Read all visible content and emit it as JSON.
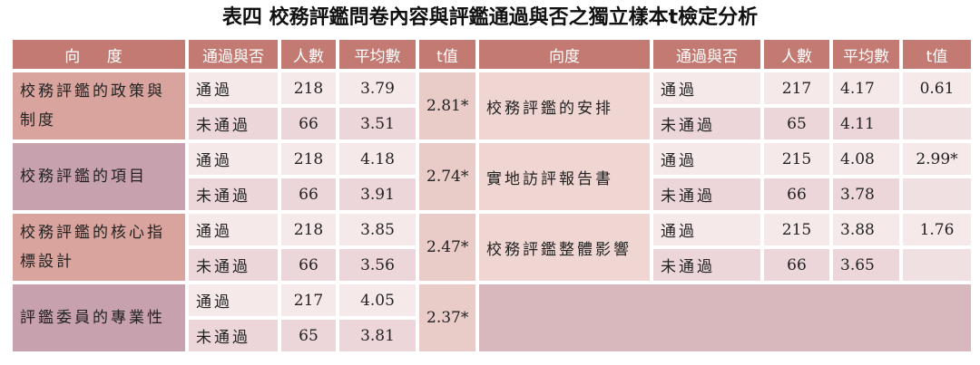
{
  "title": "表四  校務評鑑問卷內容與評鑑通過與否之獨立樣本t檢定分析",
  "table": {
    "headers": [
      "向  度",
      "通過與否",
      "人數",
      "平均數",
      "t值",
      "向度",
      "通過與否",
      "人數",
      "平均數",
      "t值"
    ],
    "left_groups": [
      {
        "dimension": "校務評鑑的政策與制度",
        "rows": [
          [
            "通過",
            218,
            3.79
          ],
          [
            "未通過",
            66,
            3.51
          ]
        ],
        "t": "2.81*"
      },
      {
        "dimension": "校務評鑑的項目",
        "rows": [
          [
            "通過",
            218,
            4.18
          ],
          [
            "未通過",
            66,
            3.91
          ]
        ],
        "t": "2.74*"
      },
      {
        "dimension": "校務評鑑的核心指標設計",
        "rows": [
          [
            "通過",
            218,
            3.85
          ],
          [
            "未通過",
            66,
            3.56
          ]
        ],
        "t": "2.47*"
      },
      {
        "dimension": "評鑑委員的專業性",
        "rows": [
          [
            "通過",
            217,
            4.05
          ],
          [
            "未通過",
            65,
            3.81
          ]
        ],
        "t": "2.37*"
      }
    ],
    "right_groups": [
      {
        "dimension": "校務評鑑的安排",
        "rows": [
          [
            "通過",
            217,
            4.17
          ],
          [
            "未通過",
            65,
            4.11
          ]
        ],
        "t": 0.61
      },
      {
        "dimension": "實地訪評報告書",
        "rows": [
          [
            "通過",
            215,
            4.08
          ],
          [
            "未通過",
            66,
            3.78
          ]
        ],
        "t": "2.99*"
      },
      {
        "dimension": "校務評鑑整體影響",
        "rows": [
          [
            "通過",
            215,
            3.88
          ],
          [
            "未通過",
            66,
            3.65
          ]
        ],
        "t": 1.76
      }
    ]
  }
}
